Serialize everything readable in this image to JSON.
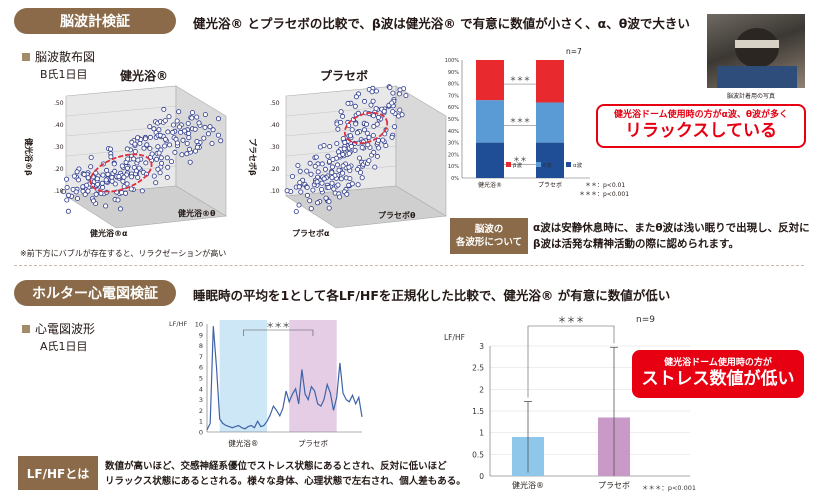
{
  "section1": {
    "tag": "脳波計検証",
    "headline": "健光浴® とプラセボの比較で、β波は健光浴® で有意に数値が小さく、α、θ波で大きい",
    "subheading": "脳波散布図",
    "subject": "B氏1日目",
    "scatter_titles": [
      "健光浴®",
      "プラセボ"
    ],
    "scatter_axes": {
      "left_vertical": "健光浴®β",
      "left_bottom1": "健光浴®α",
      "left_bottom2": "健光浴®θ",
      "right_vertical": "プラセボβ",
      "right_bottom1": "プラセボα",
      "right_bottom2": "プラセボθ"
    },
    "scatter_ticks": [
      ".10",
      ".20",
      ".30",
      ".40",
      ".50"
    ],
    "scatter_note": "※前下方にバブルが存在すると、リラクゼーションが高い",
    "photo_caption": "脳波計着用の写真",
    "explain_label": [
      "脳波の",
      "各波形について"
    ],
    "explain_text": [
      "α波は安静休息時に、またθ波は浅い眠りで出現し、反対に",
      "β波は活発な精神活動の際に認められます。"
    ],
    "callout": {
      "line1": "健光浴ドーム使用時の方がα波、θ波が多く",
      "line2": "リラックスしている"
    }
  },
  "chart1": {
    "n_label": "n=7",
    "ytick_labels": [
      "100%",
      "90%",
      "80%",
      "70%",
      "60%",
      "50%",
      "40%",
      "30%",
      "20%",
      "10%",
      "0%"
    ],
    "category_labels": [
      "健光浴®",
      "プラセボ"
    ],
    "sig_labels": [
      "＊＊＊",
      "＊＊＊",
      "＊＊"
    ],
    "legend": [
      "β波",
      "θ波",
      "α波"
    ],
    "footnotes": [
      "＊＊：p<0.01",
      "＊＊＊：p<0.001"
    ]
  },
  "section2": {
    "tag": "ホルター心電図検証",
    "headline": "睡眠時の平均を1として各LF/HFを正規化した比較で、健光浴® が有意に数値が低い",
    "subheading": "心電図波形",
    "subject": "A氏1日目",
    "lf_label": "LF/HFとは",
    "lf_text": [
      "数値が高いほど、交感神経系優位でストレス状態にあるとされ、反対に低いほど",
      "リラックス状態にあるとされる。様々な身体、心理状態で左右され、個人差もある。"
    ],
    "callout": {
      "line1": "健光浴ドーム使用時の方が",
      "line2": "ストレス数値が低い"
    }
  },
  "chart2": {
    "ylabel": "LF/HF",
    "ytick_labels": [
      "10",
      "9",
      "8",
      "7",
      "6",
      "5",
      "4",
      "3",
      "2",
      "1",
      "0"
    ],
    "sig_label": "＊＊＊",
    "category_labels": [
      "健光浴®",
      "プラセボ"
    ]
  },
  "chart3": {
    "ylabel": "LF/HF",
    "n_label": "n=9",
    "ytick_labels": [
      "3",
      "2.5",
      "2",
      "1.5",
      "1",
      "0.5",
      "0"
    ],
    "sig_label": "＊＊＊",
    "category_labels": [
      "健光浴®",
      "プラセボ"
    ],
    "footnote": "＊＊＊：p<0.001"
  },
  "chart_data": [
    {
      "type": "bar",
      "stacked": true,
      "categories": [
        "健光浴®",
        "プラセボ"
      ],
      "series": [
        {
          "name": "α波",
          "values": [
            30,
            30
          ],
          "color": "#1f4e96"
        },
        {
          "name": "θ波",
          "values": [
            36,
            34
          ],
          "color": "#5b9bd5"
        },
        {
          "name": "β波",
          "values": [
            34,
            36
          ],
          "color": "#e8292d"
        }
      ],
      "ylim": [
        0,
        100
      ]
    },
    {
      "type": "line",
      "x": [
        1,
        2,
        3,
        4,
        5,
        6,
        7,
        8,
        9,
        10,
        11,
        12,
        13,
        14,
        15,
        16,
        17,
        18,
        19,
        20,
        21,
        22,
        23,
        24,
        25,
        26,
        27,
        28,
        29,
        30,
        31,
        32,
        33,
        34,
        35,
        36,
        37,
        38,
        39,
        40,
        41,
        42,
        43,
        44,
        45,
        46,
        47,
        48,
        49,
        50
      ],
      "y": [
        0.2,
        0.8,
        9.8,
        6.0,
        1.2,
        0.8,
        0.6,
        0.5,
        0.4,
        0.5,
        0.6,
        0.4,
        0.3,
        0.5,
        0.6,
        0.4,
        1.0,
        0.5,
        0.6,
        1.0,
        1.6,
        2.4,
        2.0,
        1.5,
        2.2,
        3.8,
        2.8,
        3.5,
        4.0,
        2.6,
        5.8,
        3.5,
        3.0,
        4.2,
        3.8,
        2.6,
        2.4,
        3.0,
        4.4,
        3.6,
        2.0,
        3.2,
        6.4,
        3.6,
        3.0,
        2.8,
        3.4,
        2.6,
        3.2,
        1.4
      ],
      "ylim": [
        0,
        10
      ]
    },
    {
      "type": "bar",
      "categories": [
        "健光浴®",
        "プラセボ"
      ],
      "values": [
        0.9,
        1.35
      ],
      "error": [
        0.82,
        1.62
      ],
      "colors": [
        "#8fc7ea",
        "#c99ac8"
      ],
      "ylim": [
        0,
        3
      ]
    }
  ]
}
